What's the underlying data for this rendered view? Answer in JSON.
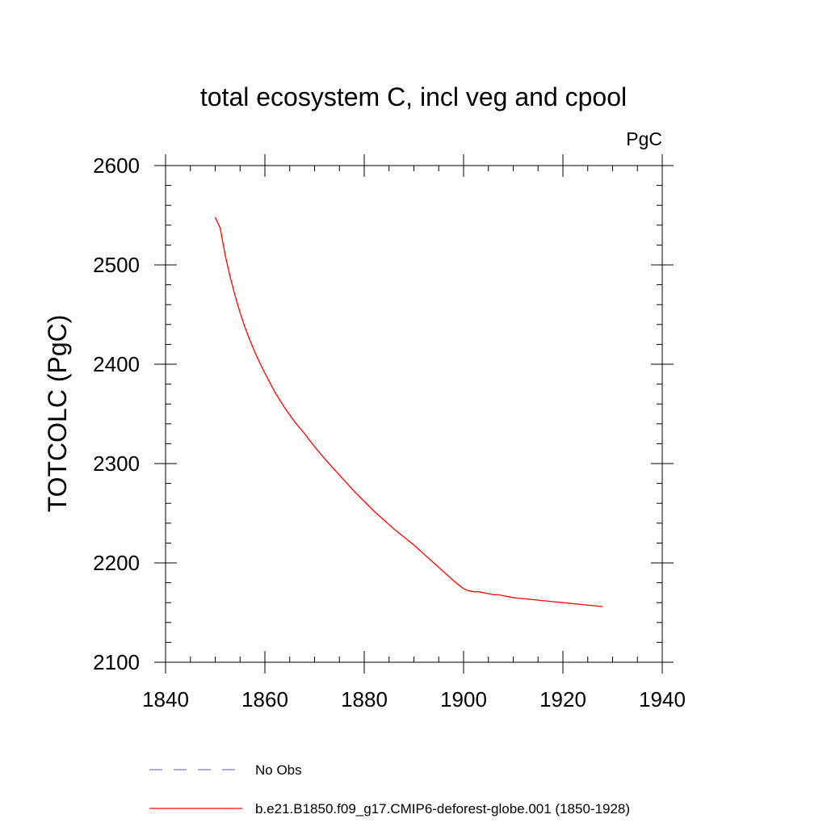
{
  "chart_data": {
    "type": "line",
    "title": "total ecosystem C, incl veg and cpool",
    "units_label": "PgC",
    "xlabel": "",
    "ylabel": "TOTCOLC  (PgC)",
    "xlim": [
      1840,
      1940
    ],
    "ylim": [
      2100,
      2600
    ],
    "x_ticks": [
      1840,
      1860,
      1880,
      1900,
      1920,
      1940
    ],
    "y_ticks": [
      2100,
      2200,
      2300,
      2400,
      2500,
      2600
    ],
    "grid": false,
    "legend_position": "bottom",
    "legend": [
      {
        "name": "No Obs",
        "color": "#7b6fd6",
        "style": "dashed"
      },
      {
        "name": "b.e21.B1850.f09_g17.CMIP6-deforest-globe.001 (1850-1928)",
        "color": "#ff0000",
        "style": "solid"
      }
    ],
    "series": [
      {
        "name": "b.e21.B1850.f09_g17.CMIP6-deforest-globe.001 (1850-1928)",
        "color": "#ff0000",
        "x": [
          1850,
          1851,
          1852,
          1853,
          1854,
          1855,
          1856,
          1857,
          1858,
          1859,
          1860,
          1862,
          1864,
          1866,
          1868,
          1870,
          1872,
          1874,
          1876,
          1878,
          1880,
          1882,
          1884,
          1886,
          1888,
          1890,
          1892,
          1894,
          1896,
          1898,
          1899,
          1900,
          1901,
          1902,
          1903,
          1904,
          1905,
          1906,
          1907,
          1908,
          1909,
          1910,
          1912,
          1914,
          1916,
          1918,
          1920,
          1922,
          1924,
          1926,
          1928
        ],
        "values": [
          2548,
          2537,
          2510,
          2488,
          2469,
          2452,
          2437,
          2424,
          2412,
          2401,
          2391,
          2372,
          2356,
          2342,
          2330,
          2317,
          2305,
          2294,
          2283,
          2272,
          2262,
          2252,
          2243,
          2234,
          2226,
          2218,
          2209,
          2200,
          2191,
          2182,
          2178,
          2174,
          2172,
          2171,
          2171,
          2170,
          2169,
          2168,
          2168,
          2167,
          2166,
          2165,
          2164,
          2163,
          2162,
          2161,
          2160,
          2159,
          2158,
          2157,
          2156
        ]
      }
    ]
  }
}
